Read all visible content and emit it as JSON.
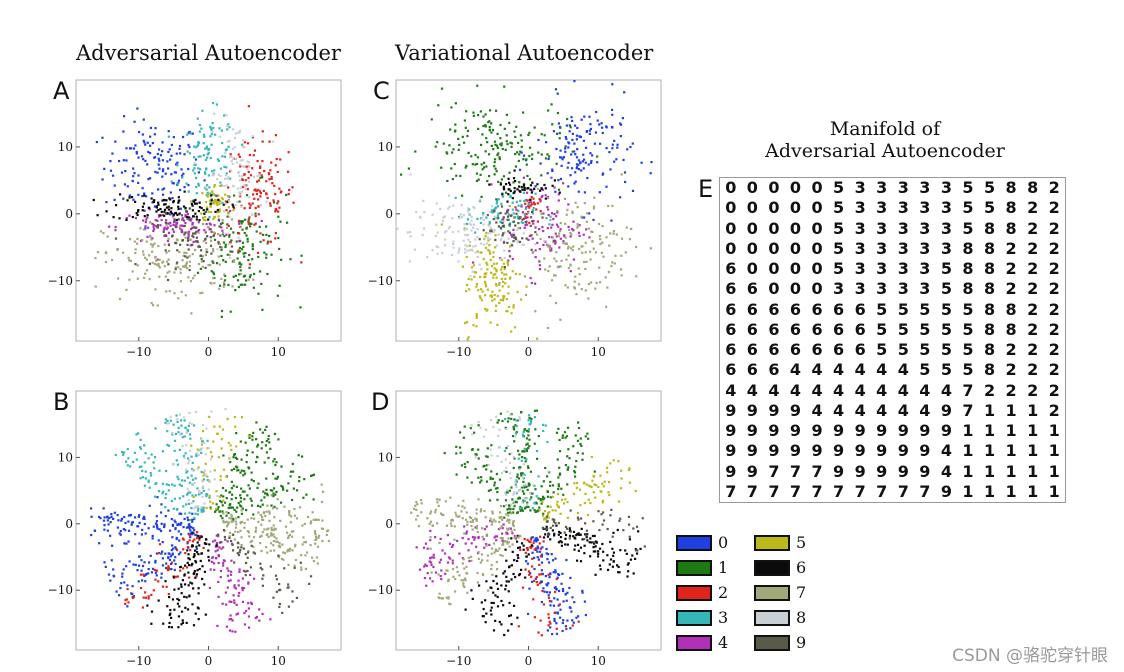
{
  "titles": {
    "aae": "Adversarial Autoencoder",
    "vae": "Variational Autoencoder",
    "manifold_line1": "Manifold of",
    "manifold_line2": "Adversarial Autoencoder"
  },
  "watermark": "CSDN @骆驼穿针眼",
  "colors": {
    "0": "#1f3fe0",
    "1": "#1e7a14",
    "2": "#e0231d",
    "3": "#36b6b8",
    "4": "#b030b8",
    "5": "#bdb81a",
    "6": "#0a0a0a",
    "7": "#a3a87a",
    "8": "#c8d0d6",
    "9": "#5a5a48"
  },
  "legend": {
    "items": [
      {
        "label": "0",
        "color": "#1f3fe0"
      },
      {
        "label": "1",
        "color": "#1e7a14"
      },
      {
        "label": "2",
        "color": "#e0231d"
      },
      {
        "label": "3",
        "color": "#36b6b8"
      },
      {
        "label": "4",
        "color": "#b030b8"
      },
      {
        "label": "5",
        "color": "#bdb81a"
      },
      {
        "label": "6",
        "color": "#0a0a0a"
      },
      {
        "label": "7",
        "color": "#a3a87a"
      },
      {
        "label": "8",
        "color": "#c8d0d6"
      },
      {
        "label": "9",
        "color": "#5a5a48"
      }
    ]
  },
  "manifold": {
    "rows": [
      "0000053333355882",
      "0000053333355822",
      "0000053333358822",
      "0000053333388222",
      "6000053333588222",
      "6600033333588222",
      "6666666555558822",
      "6666666555558822",
      "6666666555558222",
      "6664444445558222",
      "4444444444472222",
      "9999444444971112",
      "9999999999911111",
      "9999999999411111",
      "9977799999411111",
      "7777777777911111",
      "7777777777111111"
    ]
  },
  "chart_data": [
    {
      "panel": "A",
      "type": "scatter",
      "title": "Adversarial Autoencoder",
      "xlim": [
        -19,
        19
      ],
      "ylim": [
        -19,
        20
      ],
      "xticks": [
        "−10",
        "0",
        "10"
      ],
      "yticks": [
        "10",
        "0",
        "−10"
      ],
      "xtick_values": [
        -10,
        0,
        10
      ],
      "ytick_values": [
        10,
        0,
        -10
      ],
      "clusters": [
        {
          "digit": "0",
          "center": [
            -8,
            7
          ],
          "spread": [
            3.5,
            3.5
          ],
          "n": 140
        },
        {
          "digit": "1",
          "center": [
            5,
            -5
          ],
          "spread": [
            3,
            4.5
          ],
          "n": 140
        },
        {
          "digit": "2",
          "center": [
            7,
            3
          ],
          "spread": [
            2.8,
            4
          ],
          "n": 130
        },
        {
          "digit": "3",
          "center": [
            0,
            8
          ],
          "spread": [
            2,
            3.5
          ],
          "n": 110
        },
        {
          "digit": "4",
          "center": [
            -5,
            -2
          ],
          "spread": [
            4,
            1.2
          ],
          "n": 110
        },
        {
          "digit": "5",
          "center": [
            1,
            1.5
          ],
          "spread": [
            1.2,
            1.5
          ],
          "n": 60
        },
        {
          "digit": "6",
          "center": [
            -6,
            1
          ],
          "spread": [
            4,
            1
          ],
          "n": 110
        },
        {
          "digit": "7",
          "center": [
            -5,
            -7
          ],
          "spread": [
            5,
            3
          ],
          "n": 170
        },
        {
          "digit": "8",
          "center": [
            4,
            6
          ],
          "spread": [
            2,
            4
          ],
          "n": 90
        },
        {
          "digit": "9",
          "center": [
            -2,
            -4
          ],
          "spread": [
            3,
            2
          ],
          "n": 80
        }
      ]
    },
    {
      "panel": "C",
      "type": "scatter",
      "title": "Variational Autoencoder",
      "xlim": [
        -19,
        19
      ],
      "ylim": [
        -19,
        20
      ],
      "xticks": [
        "−10",
        "0",
        "10"
      ],
      "yticks": [
        "10",
        "0",
        "−10"
      ],
      "xtick_values": [
        -10,
        0,
        10
      ],
      "ytick_values": [
        10,
        0,
        -10
      ],
      "clusters": [
        {
          "digit": "0",
          "center": [
            8,
            9
          ],
          "spread": [
            3.5,
            4
          ],
          "n": 150
        },
        {
          "digit": "1",
          "center": [
            -5,
            10
          ],
          "spread": [
            5,
            3.5
          ],
          "n": 180
        },
        {
          "digit": "2",
          "center": [
            0,
            1
          ],
          "spread": [
            0.8,
            1
          ],
          "n": 30
        },
        {
          "digit": "3",
          "center": [
            -4,
            0
          ],
          "spread": [
            2.5,
            1.5
          ],
          "n": 80
        },
        {
          "digit": "4",
          "center": [
            2,
            -2
          ],
          "spread": [
            3,
            3.5
          ],
          "n": 110
        },
        {
          "digit": "5",
          "center": [
            -5,
            -10
          ],
          "spread": [
            2.2,
            4
          ],
          "n": 140
        },
        {
          "digit": "6",
          "center": [
            -1,
            4
          ],
          "spread": [
            2,
            1
          ],
          "n": 50
        },
        {
          "digit": "7",
          "center": [
            7,
            -5
          ],
          "spread": [
            4,
            4
          ],
          "n": 150
        },
        {
          "digit": "8",
          "center": [
            -9,
            -3
          ],
          "spread": [
            4,
            2.5
          ],
          "n": 140
        },
        {
          "digit": "9",
          "center": [
            -3,
            -2
          ],
          "spread": [
            2,
            2
          ],
          "n": 60
        }
      ]
    },
    {
      "panel": "B",
      "type": "scatter",
      "xlim": [
        -19,
        19
      ],
      "ylim": [
        -19,
        20
      ],
      "xticks": [
        "−10",
        "0",
        "10"
      ],
      "yticks": [
        "10",
        "0",
        "−10"
      ],
      "xtick_values": [
        -10,
        0,
        10
      ],
      "ytick_values": [
        10,
        0,
        -10
      ],
      "arms": [
        {
          "digit": "0",
          "angle": 180,
          "n": 120
        },
        {
          "digit": "0",
          "angle": 215,
          "n": 100
        },
        {
          "digit": "1",
          "angle": 60,
          "n": 90
        },
        {
          "digit": "1",
          "angle": 30,
          "n": 90
        },
        {
          "digit": "2",
          "angle": 230,
          "n": 60
        },
        {
          "digit": "3",
          "angle": 108,
          "n": 90
        },
        {
          "digit": "3",
          "angle": 138,
          "n": 80
        },
        {
          "digit": "4",
          "angle": 290,
          "n": 100
        },
        {
          "digit": "5",
          "angle": 85,
          "n": 50
        },
        {
          "digit": "6",
          "angle": 250,
          "n": 110
        },
        {
          "digit": "7",
          "angle": 345,
          "n": 100
        },
        {
          "digit": "7",
          "angle": 5,
          "n": 90
        },
        {
          "digit": "8",
          "angle": 100,
          "n": 60
        },
        {
          "digit": "9",
          "angle": 320,
          "n": 60
        }
      ]
    },
    {
      "panel": "D",
      "type": "scatter",
      "xlim": [
        -19,
        19
      ],
      "ylim": [
        -19,
        20
      ],
      "xticks": [
        "−10",
        "0",
        "10"
      ],
      "yticks": [
        "10",
        "0",
        "−10"
      ],
      "xtick_values": [
        -10,
        0,
        10
      ],
      "ytick_values": [
        10,
        0,
        -10
      ],
      "arms": [
        {
          "digit": "0",
          "angle": 290,
          "n": 120
        },
        {
          "digit": "1",
          "angle": 95,
          "n": 100
        },
        {
          "digit": "1",
          "angle": 130,
          "n": 80
        },
        {
          "digit": "1",
          "angle": 60,
          "n": 80
        },
        {
          "digit": "2",
          "angle": 280,
          "n": 60
        },
        {
          "digit": "3",
          "angle": 90,
          "n": 40
        },
        {
          "digit": "4",
          "angle": 200,
          "n": 90
        },
        {
          "digit": "5",
          "angle": 30,
          "n": 80
        },
        {
          "digit": "6",
          "angle": 340,
          "n": 110
        },
        {
          "digit": "6",
          "angle": 250,
          "n": 80
        },
        {
          "digit": "7",
          "angle": 175,
          "n": 110
        },
        {
          "digit": "7",
          "angle": 220,
          "n": 90
        },
        {
          "digit": "8",
          "angle": 110,
          "n": 60
        },
        {
          "digit": "9",
          "angle": 0,
          "n": 50
        }
      ]
    }
  ]
}
